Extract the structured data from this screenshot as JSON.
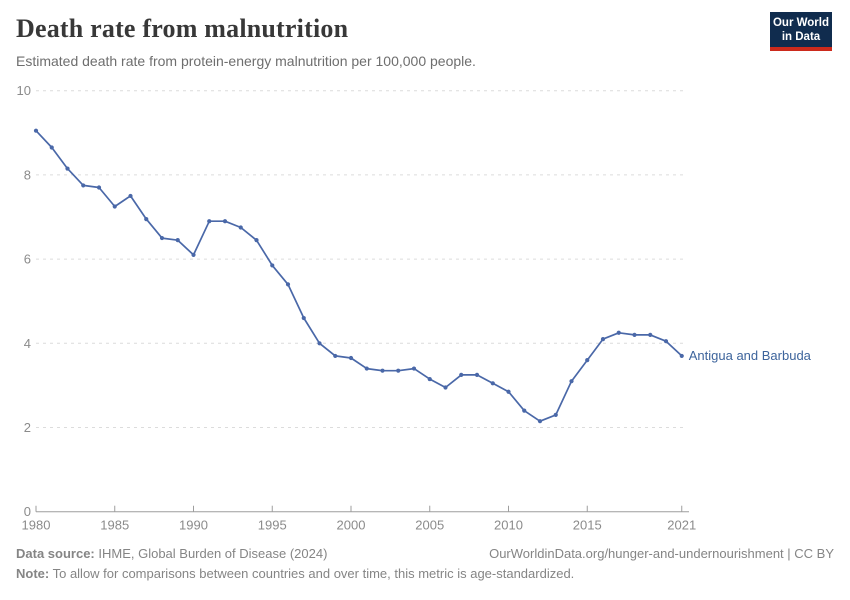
{
  "header": {
    "title": "Death rate from malnutrition",
    "subtitle": "Estimated death rate from protein-energy malnutrition per 100,000 people.",
    "logo": {
      "line1": "Our World",
      "line2": "in Data",
      "bg_color": "#102c4e",
      "bar_color": "#cc2a1c"
    }
  },
  "chart_data": {
    "type": "line",
    "title": "Death rate from malnutrition",
    "xlabel": "",
    "ylabel": "",
    "xlim": [
      1980,
      2021
    ],
    "ylim": [
      0,
      10
    ],
    "xticks": [
      1980,
      1985,
      1990,
      1995,
      2000,
      2005,
      2010,
      2015,
      2021
    ],
    "yticks": [
      0,
      2,
      4,
      6,
      8,
      10
    ],
    "grid": "horizontal-dashed",
    "legend_position": "end-of-line-label",
    "marker": "circle",
    "x": [
      1980,
      1981,
      1982,
      1983,
      1984,
      1985,
      1986,
      1987,
      1988,
      1989,
      1990,
      1991,
      1992,
      1993,
      1994,
      1995,
      1996,
      1997,
      1998,
      1999,
      2000,
      2001,
      2002,
      2003,
      2004,
      2005,
      2006,
      2007,
      2008,
      2009,
      2010,
      2011,
      2012,
      2013,
      2014,
      2015,
      2016,
      2017,
      2018,
      2019,
      2020,
      2021
    ],
    "series": [
      {
        "name": "Antigua and Barbuda",
        "color": "#4a68a8",
        "label_color": "#3d649c",
        "values": [
          9.05,
          8.65,
          8.15,
          7.75,
          7.7,
          7.25,
          7.5,
          6.95,
          6.5,
          6.45,
          6.1,
          6.9,
          6.9,
          6.75,
          6.45,
          5.85,
          5.4,
          4.6,
          4.0,
          3.7,
          3.65,
          3.4,
          3.35,
          3.35,
          3.4,
          3.15,
          2.95,
          3.25,
          3.25,
          3.05,
          2.85,
          2.4,
          2.15,
          2.3,
          3.1,
          3.6,
          4.1,
          4.25,
          4.2,
          4.2,
          4.05,
          3.7
        ]
      }
    ]
  },
  "footer": {
    "source_label": "Data source:",
    "source_text": " IHME, Global Burden of Disease (2024)",
    "link_text": "OurWorldinData.org/hunger-and-undernourishment | CC BY",
    "note_label": "Note:",
    "note_text": " To allow for comparisons between countries and over time, this metric is age-standardized."
  },
  "colors": {
    "title": "#383838",
    "subtitle": "#6e6e6e",
    "tick_label": "#8b8b8b",
    "gridline": "#dcdcdc",
    "axis": "#9e9e9e",
    "footer": "#858585"
  }
}
